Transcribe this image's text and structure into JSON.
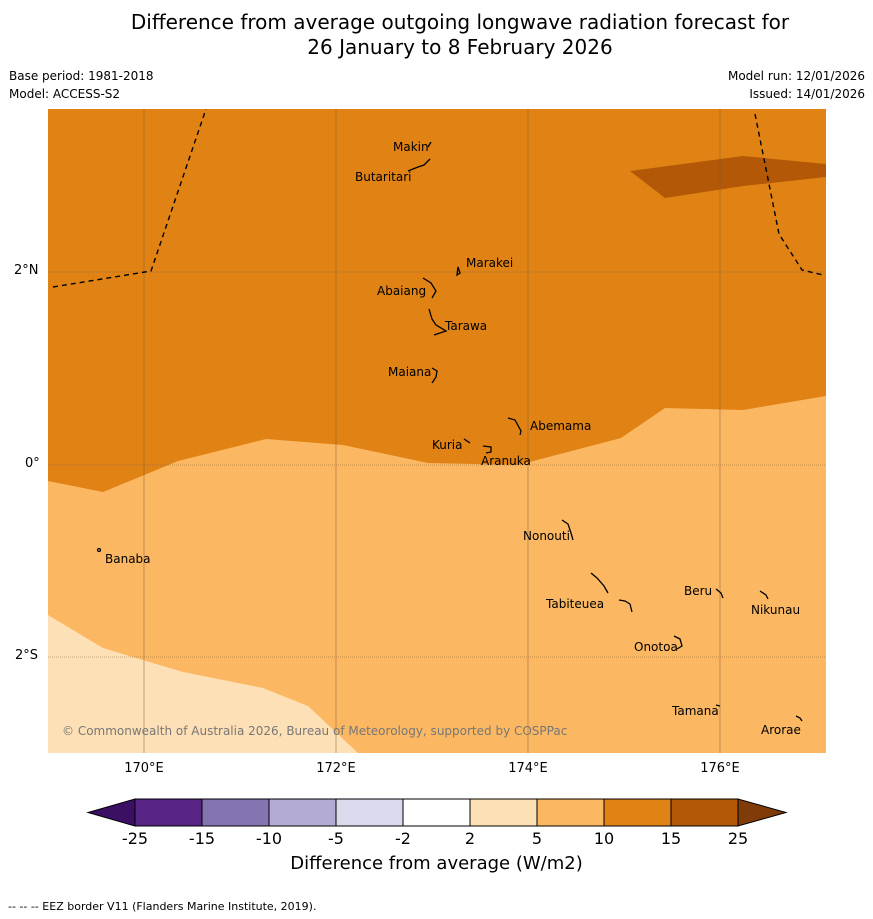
{
  "title_line1": "Difference from average outgoing longwave radiation forecast for",
  "title_line2": "26 January to 8 February 2026",
  "base_period": "Base period: 1981-2018",
  "model": "Model: ACCESS-S2",
  "model_run": "Model run: 12/01/2026",
  "issued": "Issued: 14/01/2026",
  "lat_labels": [
    "2°N",
    "0°",
    "2°S"
  ],
  "lon_labels": [
    "170°E",
    "172°E",
    "174°E",
    "176°E"
  ],
  "places": [
    "Makin",
    "Butaritari",
    "Marakei",
    "Abaiang",
    "Tarawa",
    "Maiana",
    "Abemama",
    "Kuria",
    "Aranuka",
    "Banaba",
    "Nonouti",
    "Beru",
    "Nikunau",
    "Tabiteuea",
    "Onotoa",
    "Tamana",
    "Arorae"
  ],
  "copyright": "© Commonwealth of Australia 2026, Bureau of Meteorology, supported by COSPPac",
  "colorbar": {
    "ticks": [
      "-25",
      "-15",
      "-10",
      "-5",
      "-2",
      "2",
      "5",
      "10",
      "15",
      "25"
    ],
    "colors": [
      "#3b0f63",
      "#582485",
      "#8475b0",
      "#b3abd4",
      "#dadaec",
      "#ffffff",
      "#fee0b6",
      "#fbb761",
      "#e08214",
      "#b35806",
      "#7f3b08"
    ],
    "label": "Difference from average (W/m2)"
  },
  "footer": "--  --  -- EEZ border V11 (Flanders Marine Institute, 2019)."
}
